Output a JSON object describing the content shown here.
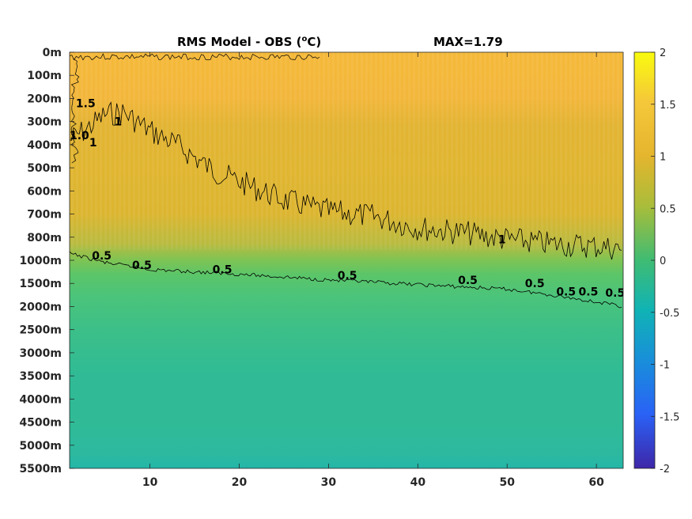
{
  "chart_data": {
    "type": "heatmap",
    "title": "RMS Model - OBS (",
    "title_sup": "o",
    "title_end": "C)",
    "annotation": "MAX=1.79",
    "x_ticks": [
      "10",
      "20",
      "30",
      "40",
      "50",
      "60"
    ],
    "x_tick_values": [
      10,
      20,
      30,
      40,
      50,
      60
    ],
    "xlim": [
      1,
      63
    ],
    "y_ticks": [
      "0m",
      "100m",
      "200m",
      "300m",
      "400m",
      "500m",
      "600m",
      "700m",
      "800m",
      "1000m",
      "1500m",
      "2000m",
      "2500m",
      "3000m",
      "3500m",
      "4000m",
      "4500m",
      "5000m",
      "5500m"
    ],
    "colorbar": {
      "ticks": [
        "2",
        "1.5",
        "1",
        "0.5",
        "0",
        "-0.5",
        "-1",
        "-1.5",
        "-2"
      ],
      "tick_values": [
        2,
        1.5,
        1,
        0.5,
        0,
        -0.5,
        -1,
        -1.5,
        -2
      ],
      "range": [
        -2,
        2
      ],
      "colormap": "parula"
    },
    "contours": [
      {
        "level": 1,
        "depth_index_by_x": [
          [
            1,
            3.8
          ],
          [
            3,
            3.3
          ],
          [
            5,
            2.7
          ],
          [
            7,
            2.6
          ],
          [
            10,
            3.4
          ],
          [
            13,
            4.0
          ],
          [
            17,
            5.1
          ],
          [
            20,
            5.6
          ],
          [
            25,
            6.4
          ],
          [
            30,
            6.9
          ],
          [
            35,
            7.1
          ],
          [
            40,
            7.6
          ],
          [
            45,
            7.8
          ],
          [
            50,
            8.1
          ],
          [
            55,
            8.3
          ],
          [
            60,
            8.4
          ],
          [
            63,
            8.5
          ]
        ]
      },
      {
        "level": 0.5,
        "depth_index_by_x": [
          [
            1,
            8.7
          ],
          [
            5,
            9.1
          ],
          [
            10,
            9.4
          ],
          [
            20,
            9.6
          ],
          [
            30,
            9.85
          ],
          [
            40,
            10.05
          ],
          [
            50,
            10.25
          ],
          [
            55,
            10.5
          ],
          [
            60,
            10.8
          ],
          [
            63,
            11.0
          ]
        ]
      }
    ],
    "contour_labels": [
      {
        "text": "1.5",
        "x": 1.7,
        "y_index": 2.2
      },
      {
        "text": "1.0",
        "x": 1.0,
        "y_index": 3.6
      },
      {
        "text": "1",
        "x": 3.2,
        "y_index": 3.9
      },
      {
        "text": "1",
        "x": 6.0,
        "y_index": 3.0
      },
      {
        "text": "1",
        "x": 49.0,
        "y_index": 8.1
      },
      {
        "text": "0.5",
        "x": 3.5,
        "y_index": 8.8
      },
      {
        "text": "0.5",
        "x": 8.0,
        "y_index": 9.2
      },
      {
        "text": "0.5",
        "x": 17.0,
        "y_index": 9.4
      },
      {
        "text": "0.5",
        "x": 31.0,
        "y_index": 9.65
      },
      {
        "text": "0.5",
        "x": 44.5,
        "y_index": 9.85
      },
      {
        "text": "0.5",
        "x": 52.0,
        "y_index": 10.0
      },
      {
        "text": "0.5",
        "x": 55.5,
        "y_index": 10.35
      },
      {
        "text": "0.5",
        "x": 58.0,
        "y_index": 10.35
      },
      {
        "text": "0.5",
        "x": 61.0,
        "y_index": 10.4
      }
    ],
    "field_rows": [
      {
        "y_index": 0,
        "color": "#f5b93a"
      },
      {
        "y_index": 2,
        "color": "#f2b63b"
      },
      {
        "y_index": 3.2,
        "color": "#e2b433"
      },
      {
        "y_index": 5,
        "color": "#e0b530"
      },
      {
        "y_index": 7,
        "color": "#dcb530"
      },
      {
        "y_index": 8.3,
        "color": "#b8bb40"
      },
      {
        "y_index": 9,
        "color": "#7ec454"
      },
      {
        "y_index": 9.6,
        "color": "#5cc568"
      },
      {
        "y_index": 10.5,
        "color": "#4cc47a"
      },
      {
        "y_index": 12,
        "color": "#3cbf88"
      },
      {
        "y_index": 14,
        "color": "#30bb96"
      },
      {
        "y_index": 16,
        "color": "#30bb96"
      },
      {
        "y_index": 17.4,
        "color": "#2db9a0"
      },
      {
        "y_index": 18,
        "color": "#24b6a8"
      }
    ]
  }
}
